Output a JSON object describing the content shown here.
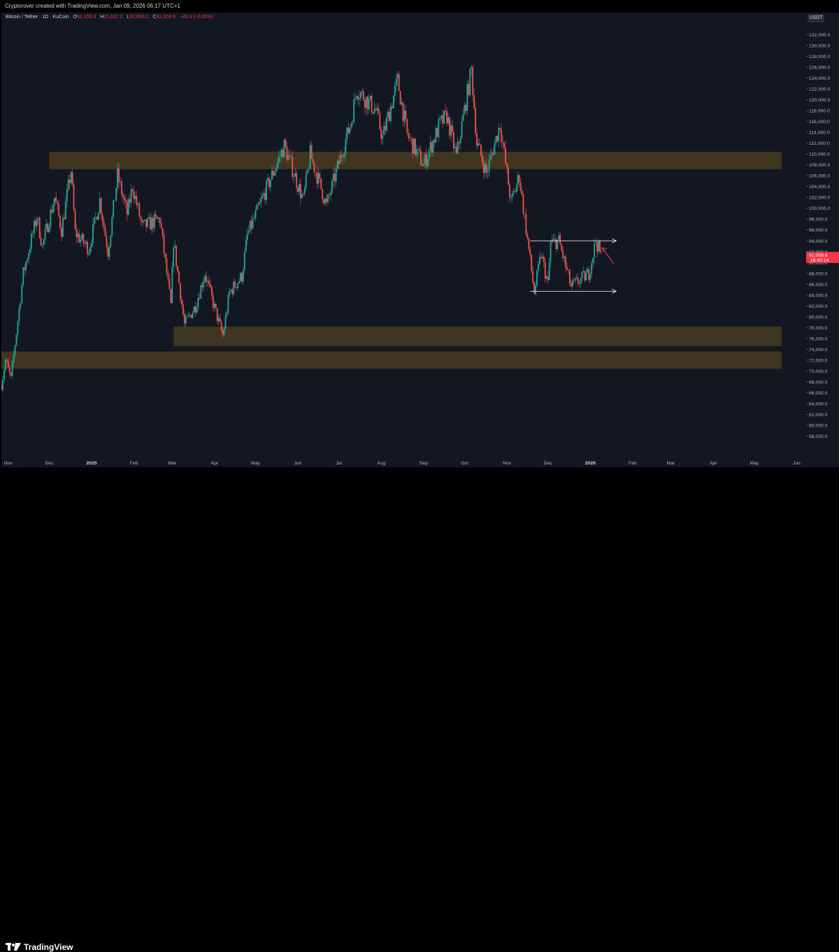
{
  "header": {
    "caption": "Cryptorover created with TradingView.com, Jan 09, 2026 06:17 UTC+1"
  },
  "legend": {
    "symbol": "Bitcoin / Tether · 1D · KuCoin",
    "o_label": "O",
    "o_value": "91,105.3",
    "h_label": "H",
    "h_value": "91,637.2",
    "l_label": "L",
    "l_value": "90,659.1",
    "c_label": "C",
    "c_value": "91,059.9",
    "change": "−45.3 (−0.05%)"
  },
  "price_axis": {
    "currency": "USDT",
    "ticks": [
      "58,000.0",
      "60,000.0",
      "62,000.0",
      "64,000.0",
      "66,000.0",
      "68,000.0",
      "70,000.0",
      "72,000.0",
      "74,000.0",
      "76,000.0",
      "78,000.0",
      "80,000.0",
      "82,000.0",
      "84,000.0",
      "86,000.0",
      "88,000.0",
      "90,000.0",
      "92,000.0",
      "94,000.0",
      "96,000.0",
      "98,000.0",
      "100,000.0",
      "102,000.0",
      "104,000.0",
      "106,000.0",
      "108,000.0",
      "110,000.0",
      "112,000.0",
      "114,000.0",
      "116,000.0",
      "118,000.0",
      "120,000.0",
      "122,000.0",
      "124,000.0",
      "126,000.0",
      "128,000.0",
      "130,000.0",
      "132,000.0"
    ],
    "current_price_label": "91,059.9",
    "countdown_label": "18:42:14"
  },
  "time_axis": {
    "labels": [
      "Nov",
      "Dec",
      "2025",
      "Feb",
      "Mar",
      "Apr",
      "May",
      "Jun",
      "Jul",
      "Aug",
      "Sep",
      "Oct",
      "Nov",
      "Dec",
      "2026",
      "Feb",
      "Mar",
      "Apr",
      "May",
      "Jun"
    ]
  },
  "footer": {
    "brand": "TradingView"
  },
  "colors": {
    "up": "#26a69a",
    "down": "#ef5350",
    "background": "#131722",
    "zone": "#5d4a1f",
    "price_tag": "#f23645",
    "arrow": "#ffffff",
    "forecast_arrow": "#f23645"
  },
  "chart_data": {
    "type": "candlestick",
    "title": "Bitcoin / Tether · 1D · KuCoin",
    "y_unit": "USDT",
    "ylim": [
      56000,
      134000
    ],
    "x_range": [
      "2024-10-27",
      "2026-06-08"
    ],
    "current_price": 91059.9,
    "path_points": [
      {
        "date": "2024-10-27",
        "price": 67500
      },
      {
        "date": "2024-10-30",
        "price": 72000
      },
      {
        "date": "2024-11-03",
        "price": 68500
      },
      {
        "date": "2024-11-06",
        "price": 75000
      },
      {
        "date": "2024-11-12",
        "price": 88000
      },
      {
        "date": "2024-11-22",
        "price": 98500
      },
      {
        "date": "2024-11-26",
        "price": 93000
      },
      {
        "date": "2024-12-05",
        "price": 102000
      },
      {
        "date": "2024-12-10",
        "price": 96000
      },
      {
        "date": "2024-12-17",
        "price": 107000
      },
      {
        "date": "2024-12-20",
        "price": 95500
      },
      {
        "date": "2024-12-30",
        "price": 92500
      },
      {
        "date": "2025-01-07",
        "price": 101500
      },
      {
        "date": "2025-01-13",
        "price": 92000
      },
      {
        "date": "2025-01-20",
        "price": 106000
      },
      {
        "date": "2025-01-27",
        "price": 99000
      },
      {
        "date": "2025-01-31",
        "price": 104000
      },
      {
        "date": "2025-02-07",
        "price": 96500
      },
      {
        "date": "2025-02-20",
        "price": 98000
      },
      {
        "date": "2025-02-28",
        "price": 82000
      },
      {
        "date": "2025-03-02",
        "price": 94000
      },
      {
        "date": "2025-03-10",
        "price": 78500
      },
      {
        "date": "2025-03-18",
        "price": 82000
      },
      {
        "date": "2025-03-25",
        "price": 88000
      },
      {
        "date": "2025-03-31",
        "price": 82500
      },
      {
        "date": "2025-04-07",
        "price": 76500
      },
      {
        "date": "2025-04-12",
        "price": 84500
      },
      {
        "date": "2025-04-21",
        "price": 87500
      },
      {
        "date": "2025-04-25",
        "price": 95000
      },
      {
        "date": "2025-05-08",
        "price": 103000
      },
      {
        "date": "2025-05-22",
        "price": 111500
      },
      {
        "date": "2025-06-05",
        "price": 101500
      },
      {
        "date": "2025-06-10",
        "price": 110000
      },
      {
        "date": "2025-06-22",
        "price": 100500
      },
      {
        "date": "2025-06-30",
        "price": 107500
      },
      {
        "date": "2025-07-10",
        "price": 116000
      },
      {
        "date": "2025-07-14",
        "price": 122000
      },
      {
        "date": "2025-07-28",
        "price": 118000
      },
      {
        "date": "2025-08-02",
        "price": 113000
      },
      {
        "date": "2025-08-13",
        "price": 123500
      },
      {
        "date": "2025-08-20",
        "price": 113500
      },
      {
        "date": "2025-09-01",
        "price": 108000
      },
      {
        "date": "2025-09-13",
        "price": 115500
      },
      {
        "date": "2025-09-18",
        "price": 117000
      },
      {
        "date": "2025-09-25",
        "price": 109500
      },
      {
        "date": "2025-10-06",
        "price": 125500
      },
      {
        "date": "2025-10-10",
        "price": 112000
      },
      {
        "date": "2025-10-17",
        "price": 106500
      },
      {
        "date": "2025-10-27",
        "price": 115500
      },
      {
        "date": "2025-11-04",
        "price": 101000
      },
      {
        "date": "2025-11-10",
        "price": 106000
      },
      {
        "date": "2025-11-21",
        "price": 84500
      },
      {
        "date": "2025-11-26",
        "price": 91500
      },
      {
        "date": "2025-12-01",
        "price": 86000
      },
      {
        "date": "2025-12-03",
        "price": 93500
      },
      {
        "date": "2025-12-09",
        "price": 94000
      },
      {
        "date": "2025-12-18",
        "price": 85500
      },
      {
        "date": "2025-12-31",
        "price": 88000
      },
      {
        "date": "2026-01-05",
        "price": 94000
      },
      {
        "date": "2026-01-09",
        "price": 91060
      }
    ],
    "zones": [
      {
        "from_date": "2024-12-01",
        "to_date": "2026-06-08",
        "low": 107200,
        "high": 110400
      },
      {
        "from_date": "2025-03-02",
        "to_date": "2026-06-08",
        "low": 74600,
        "high": 78200
      },
      {
        "from_date": "2024-10-27",
        "to_date": "2026-06-08",
        "low": 70400,
        "high": 73600
      }
    ],
    "range_lines": [
      {
        "from_date": "2025-11-18",
        "to_date": "2026-01-20",
        "price": 94000
      },
      {
        "from_date": "2025-11-18",
        "to_date": "2026-01-20",
        "price": 84700
      }
    ],
    "forecast_arrow": {
      "from_date": "2026-01-10",
      "from_price": 92700,
      "to_date": "2026-01-18",
      "to_price": 89800
    }
  }
}
